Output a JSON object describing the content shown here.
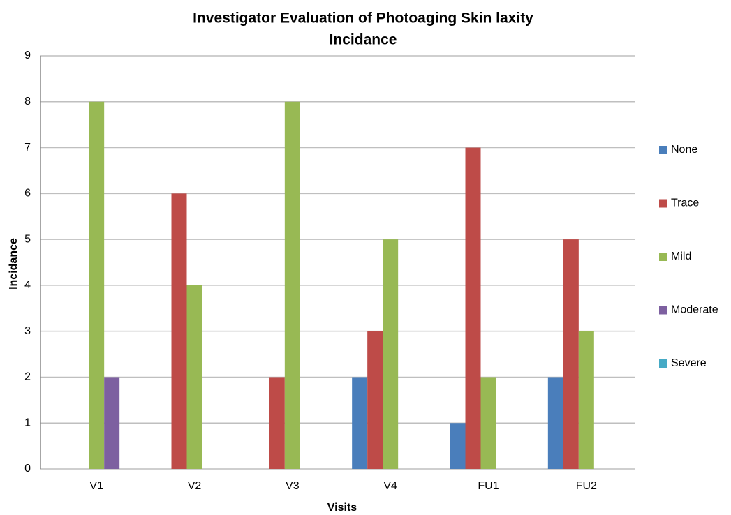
{
  "chart_data": {
    "type": "bar",
    "title": [
      "Investigator Evaluation of Photoaging Skin laxity",
      "Incidance"
    ],
    "x_label": "Visits",
    "y_label": "Incidance",
    "categories": [
      "V1",
      "V2",
      "V3",
      "V4",
      "FU1",
      "FU2"
    ],
    "series": [
      {
        "name": "None",
        "color": "#4a7ebb",
        "values": [
          0,
          0,
          0,
          2,
          1,
          2
        ]
      },
      {
        "name": "Trace",
        "color": "#be4b48",
        "values": [
          0,
          6,
          2,
          3,
          7,
          5
        ]
      },
      {
        "name": "Mild",
        "color": "#98b954",
        "values": [
          8,
          4,
          8,
          5,
          2,
          3
        ]
      },
      {
        "name": "Moderate",
        "color": "#7d60a0",
        "values": [
          2,
          0,
          0,
          0,
          0,
          0
        ]
      },
      {
        "name": "Severe",
        "color": "#46aac5",
        "values": [
          0,
          0,
          0,
          0,
          0,
          0
        ]
      }
    ],
    "ylim": [
      0,
      9
    ],
    "yticks": [
      0,
      1,
      2,
      3,
      4,
      5,
      6,
      7,
      8,
      9
    ],
    "grid": true,
    "legend": "right"
  }
}
